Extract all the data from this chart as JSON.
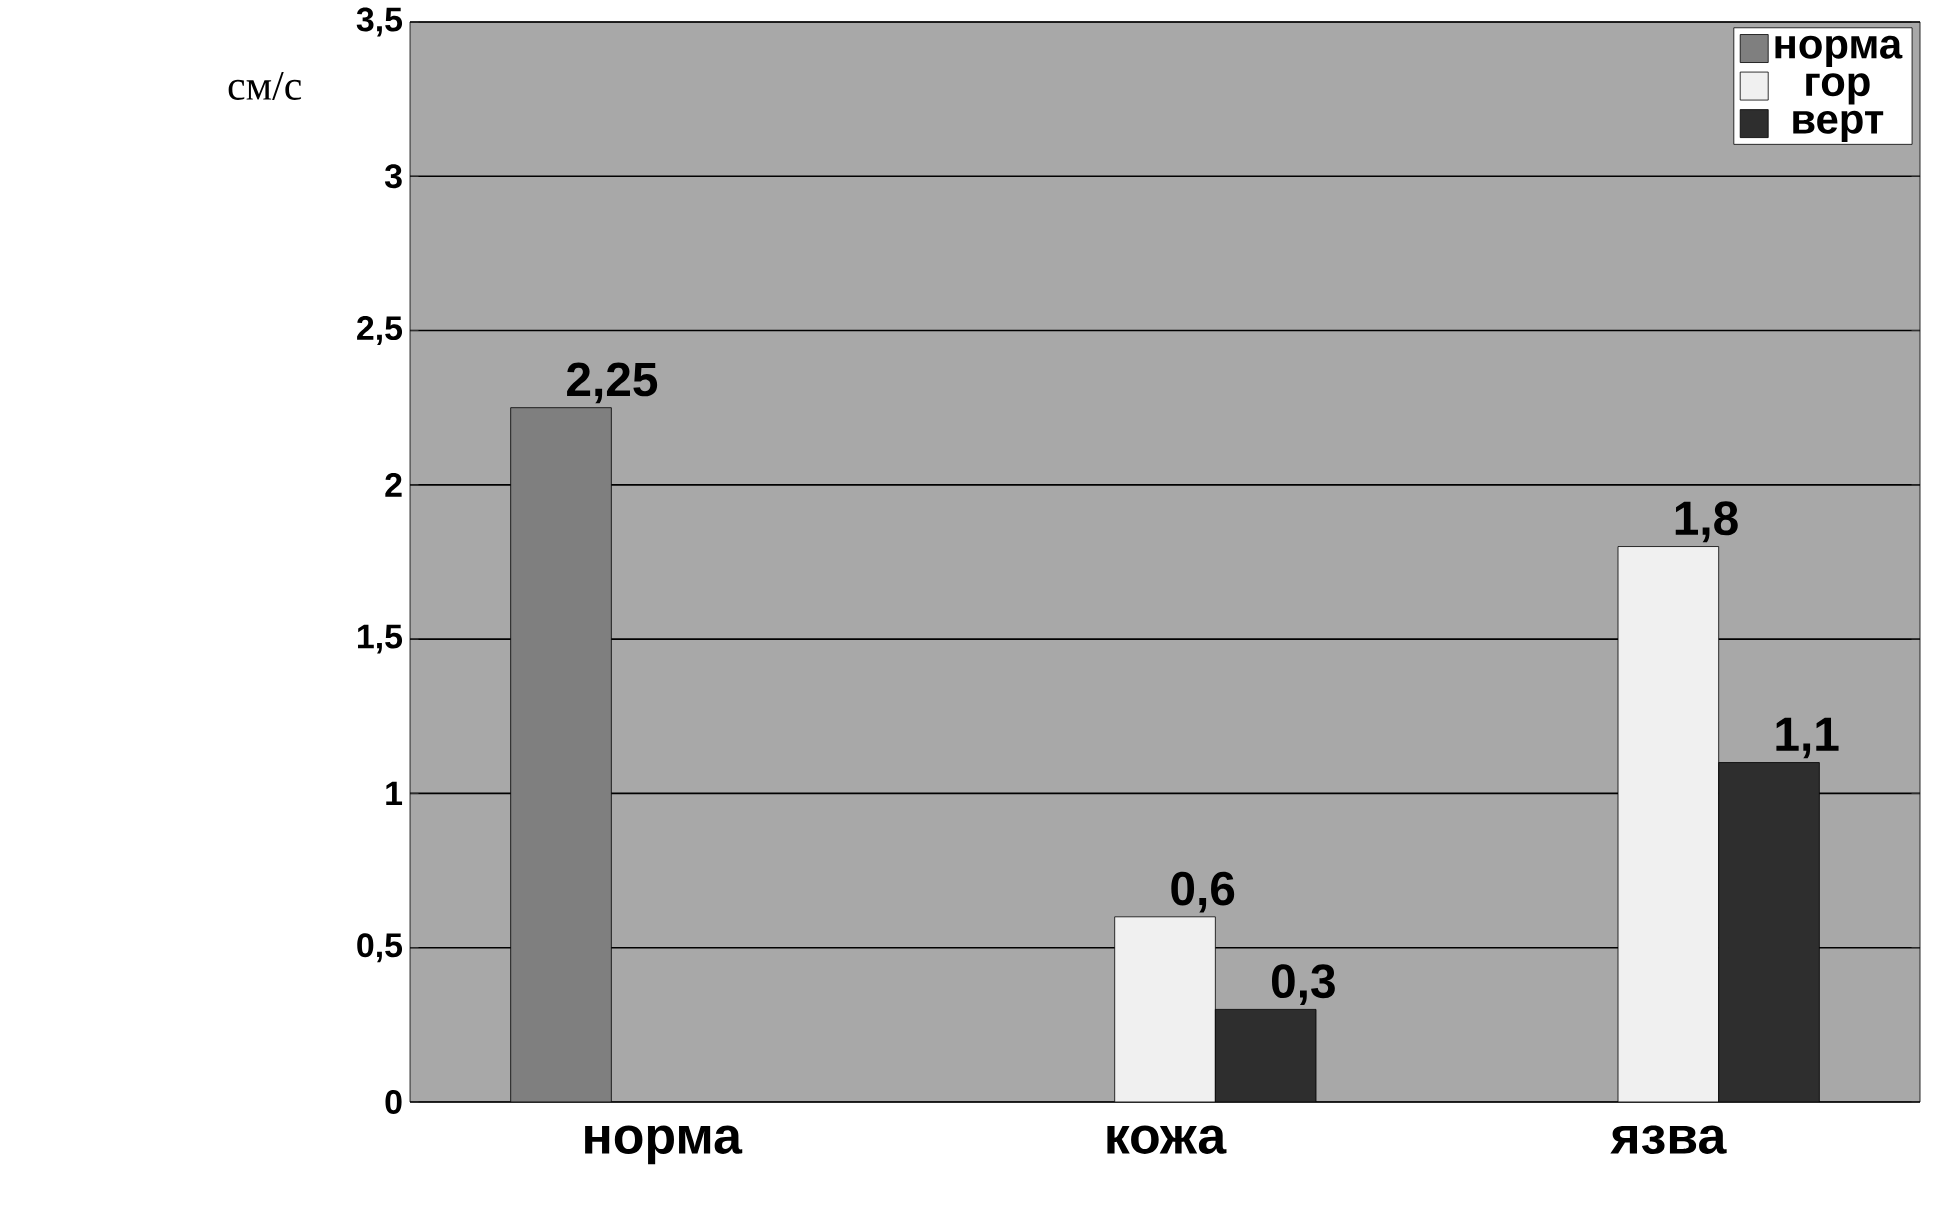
{
  "chart_data": {
    "type": "bar",
    "ylabel": "см/с",
    "categories": [
      "норма",
      "кожа",
      "язва"
    ],
    "series": [
      {
        "name": "норма",
        "color": "#7f7f7f",
        "values": [
          2.25,
          null,
          null
        ],
        "value_labels": [
          "2,25",
          null,
          null
        ]
      },
      {
        "name": "гор",
        "color": "#f0f0f0",
        "values": [
          null,
          0.6,
          1.8
        ],
        "value_labels": [
          null,
          "0,6",
          "1,8"
        ]
      },
      {
        "name": "верт",
        "color": "#2e2e2e",
        "values": [
          null,
          0.3,
          1.1
        ],
        "value_labels": [
          null,
          "0,3",
          "1,1"
        ]
      }
    ],
    "ylim": [
      0,
      3.5
    ],
    "yticks": [
      0,
      {
        "value": 0.5,
        "label": "0,5"
      },
      1,
      {
        "value": 1.5,
        "label": "1,5"
      },
      2,
      {
        "value": 2.5,
        "label": "2,5"
      },
      3,
      {
        "value": 3.5,
        "label": "3,5"
      }
    ],
    "grid": "y",
    "legend": "top right"
  }
}
